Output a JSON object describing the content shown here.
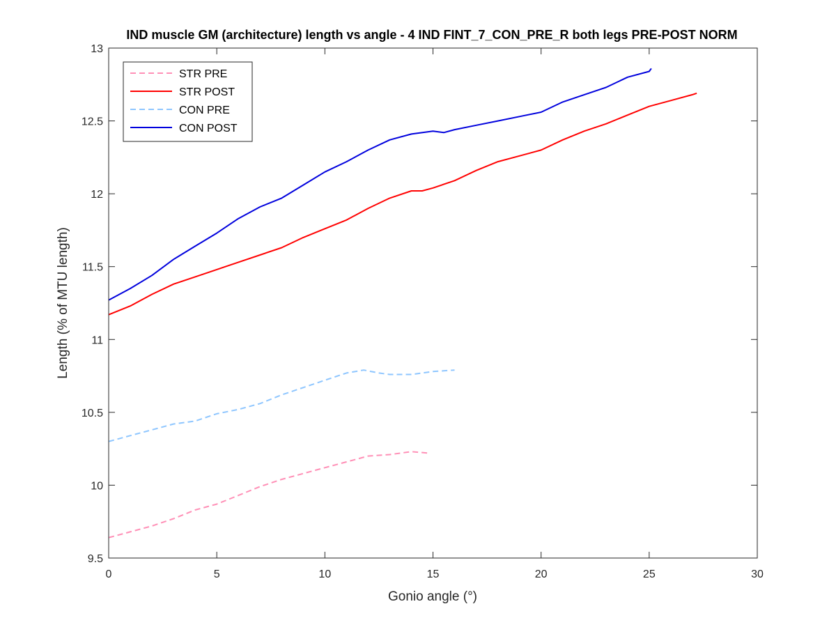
{
  "chart_data": {
    "type": "line",
    "title": "IND muscle GM (architecture) length vs angle - 4 IND FINT_7_CON_PRE_R both legs PRE-POST NORM",
    "xlabel": "Gonio angle (°)",
    "ylabel": "Length (% of MTU length)",
    "xlim": [
      0,
      30
    ],
    "ylim": [
      9.5,
      13
    ],
    "xticks": [
      0,
      5,
      10,
      15,
      20,
      25,
      30
    ],
    "yticks": [
      9.5,
      10,
      10.5,
      11,
      11.5,
      12,
      12.5,
      13
    ],
    "xtick_labels": [
      "0",
      "5",
      "10",
      "15",
      "20",
      "25",
      "30"
    ],
    "ytick_labels": [
      "9.5",
      "10",
      "10.5",
      "11",
      "11.5",
      "12",
      "12.5",
      "13"
    ],
    "grid": false,
    "legend_position": "top-left",
    "series": [
      {
        "name": "STR PRE",
        "color": "#ff8fb6",
        "style": "dashed",
        "x": [
          0,
          1,
          2,
          3,
          4,
          5,
          6,
          7,
          8,
          9,
          10,
          11,
          12,
          13,
          14,
          14.8
        ],
        "y": [
          9.64,
          9.68,
          9.72,
          9.77,
          9.83,
          9.87,
          9.93,
          9.99,
          10.04,
          10.08,
          10.12,
          10.16,
          10.2,
          10.21,
          10.23,
          10.22
        ]
      },
      {
        "name": "STR POST",
        "color": "#ff0000",
        "style": "solid",
        "x": [
          0,
          1,
          2,
          3,
          4,
          5,
          6,
          7,
          8,
          9,
          10,
          11,
          12,
          13,
          14,
          14.5,
          15,
          16,
          17,
          18,
          19,
          20,
          21,
          22,
          23,
          24,
          25,
          26,
          27,
          27.2
        ],
        "y": [
          11.17,
          11.23,
          11.31,
          11.38,
          11.43,
          11.48,
          11.53,
          11.58,
          11.63,
          11.7,
          11.76,
          11.82,
          11.9,
          11.97,
          12.02,
          12.02,
          12.04,
          12.09,
          12.16,
          12.22,
          12.26,
          12.3,
          12.37,
          12.43,
          12.48,
          12.54,
          12.6,
          12.64,
          12.68,
          12.69
        ]
      },
      {
        "name": "CON PRE",
        "color": "#8ec6ff",
        "style": "dashed",
        "x": [
          0,
          1,
          2,
          3,
          4,
          5,
          6,
          7,
          8,
          9,
          10,
          11,
          11.8,
          12.5,
          13,
          14,
          15,
          16
        ],
        "y": [
          10.3,
          10.34,
          10.38,
          10.42,
          10.44,
          10.49,
          10.52,
          10.56,
          10.62,
          10.67,
          10.72,
          10.77,
          10.79,
          10.77,
          10.76,
          10.76,
          10.78,
          10.79
        ]
      },
      {
        "name": "CON POST",
        "color": "#0000dd",
        "style": "solid",
        "x": [
          0,
          1,
          2,
          3,
          4,
          5,
          6,
          7,
          8,
          9,
          10,
          11,
          12,
          13,
          14,
          15,
          15.5,
          16,
          17,
          18,
          19,
          20,
          21,
          22,
          23,
          24,
          25,
          25.1
        ],
        "y": [
          11.27,
          11.35,
          11.44,
          11.55,
          11.64,
          11.73,
          11.83,
          11.91,
          11.97,
          12.06,
          12.15,
          12.22,
          12.3,
          12.37,
          12.41,
          12.43,
          12.42,
          12.44,
          12.47,
          12.5,
          12.53,
          12.56,
          12.63,
          12.68,
          12.73,
          12.8,
          12.84,
          12.86
        ]
      }
    ]
  }
}
